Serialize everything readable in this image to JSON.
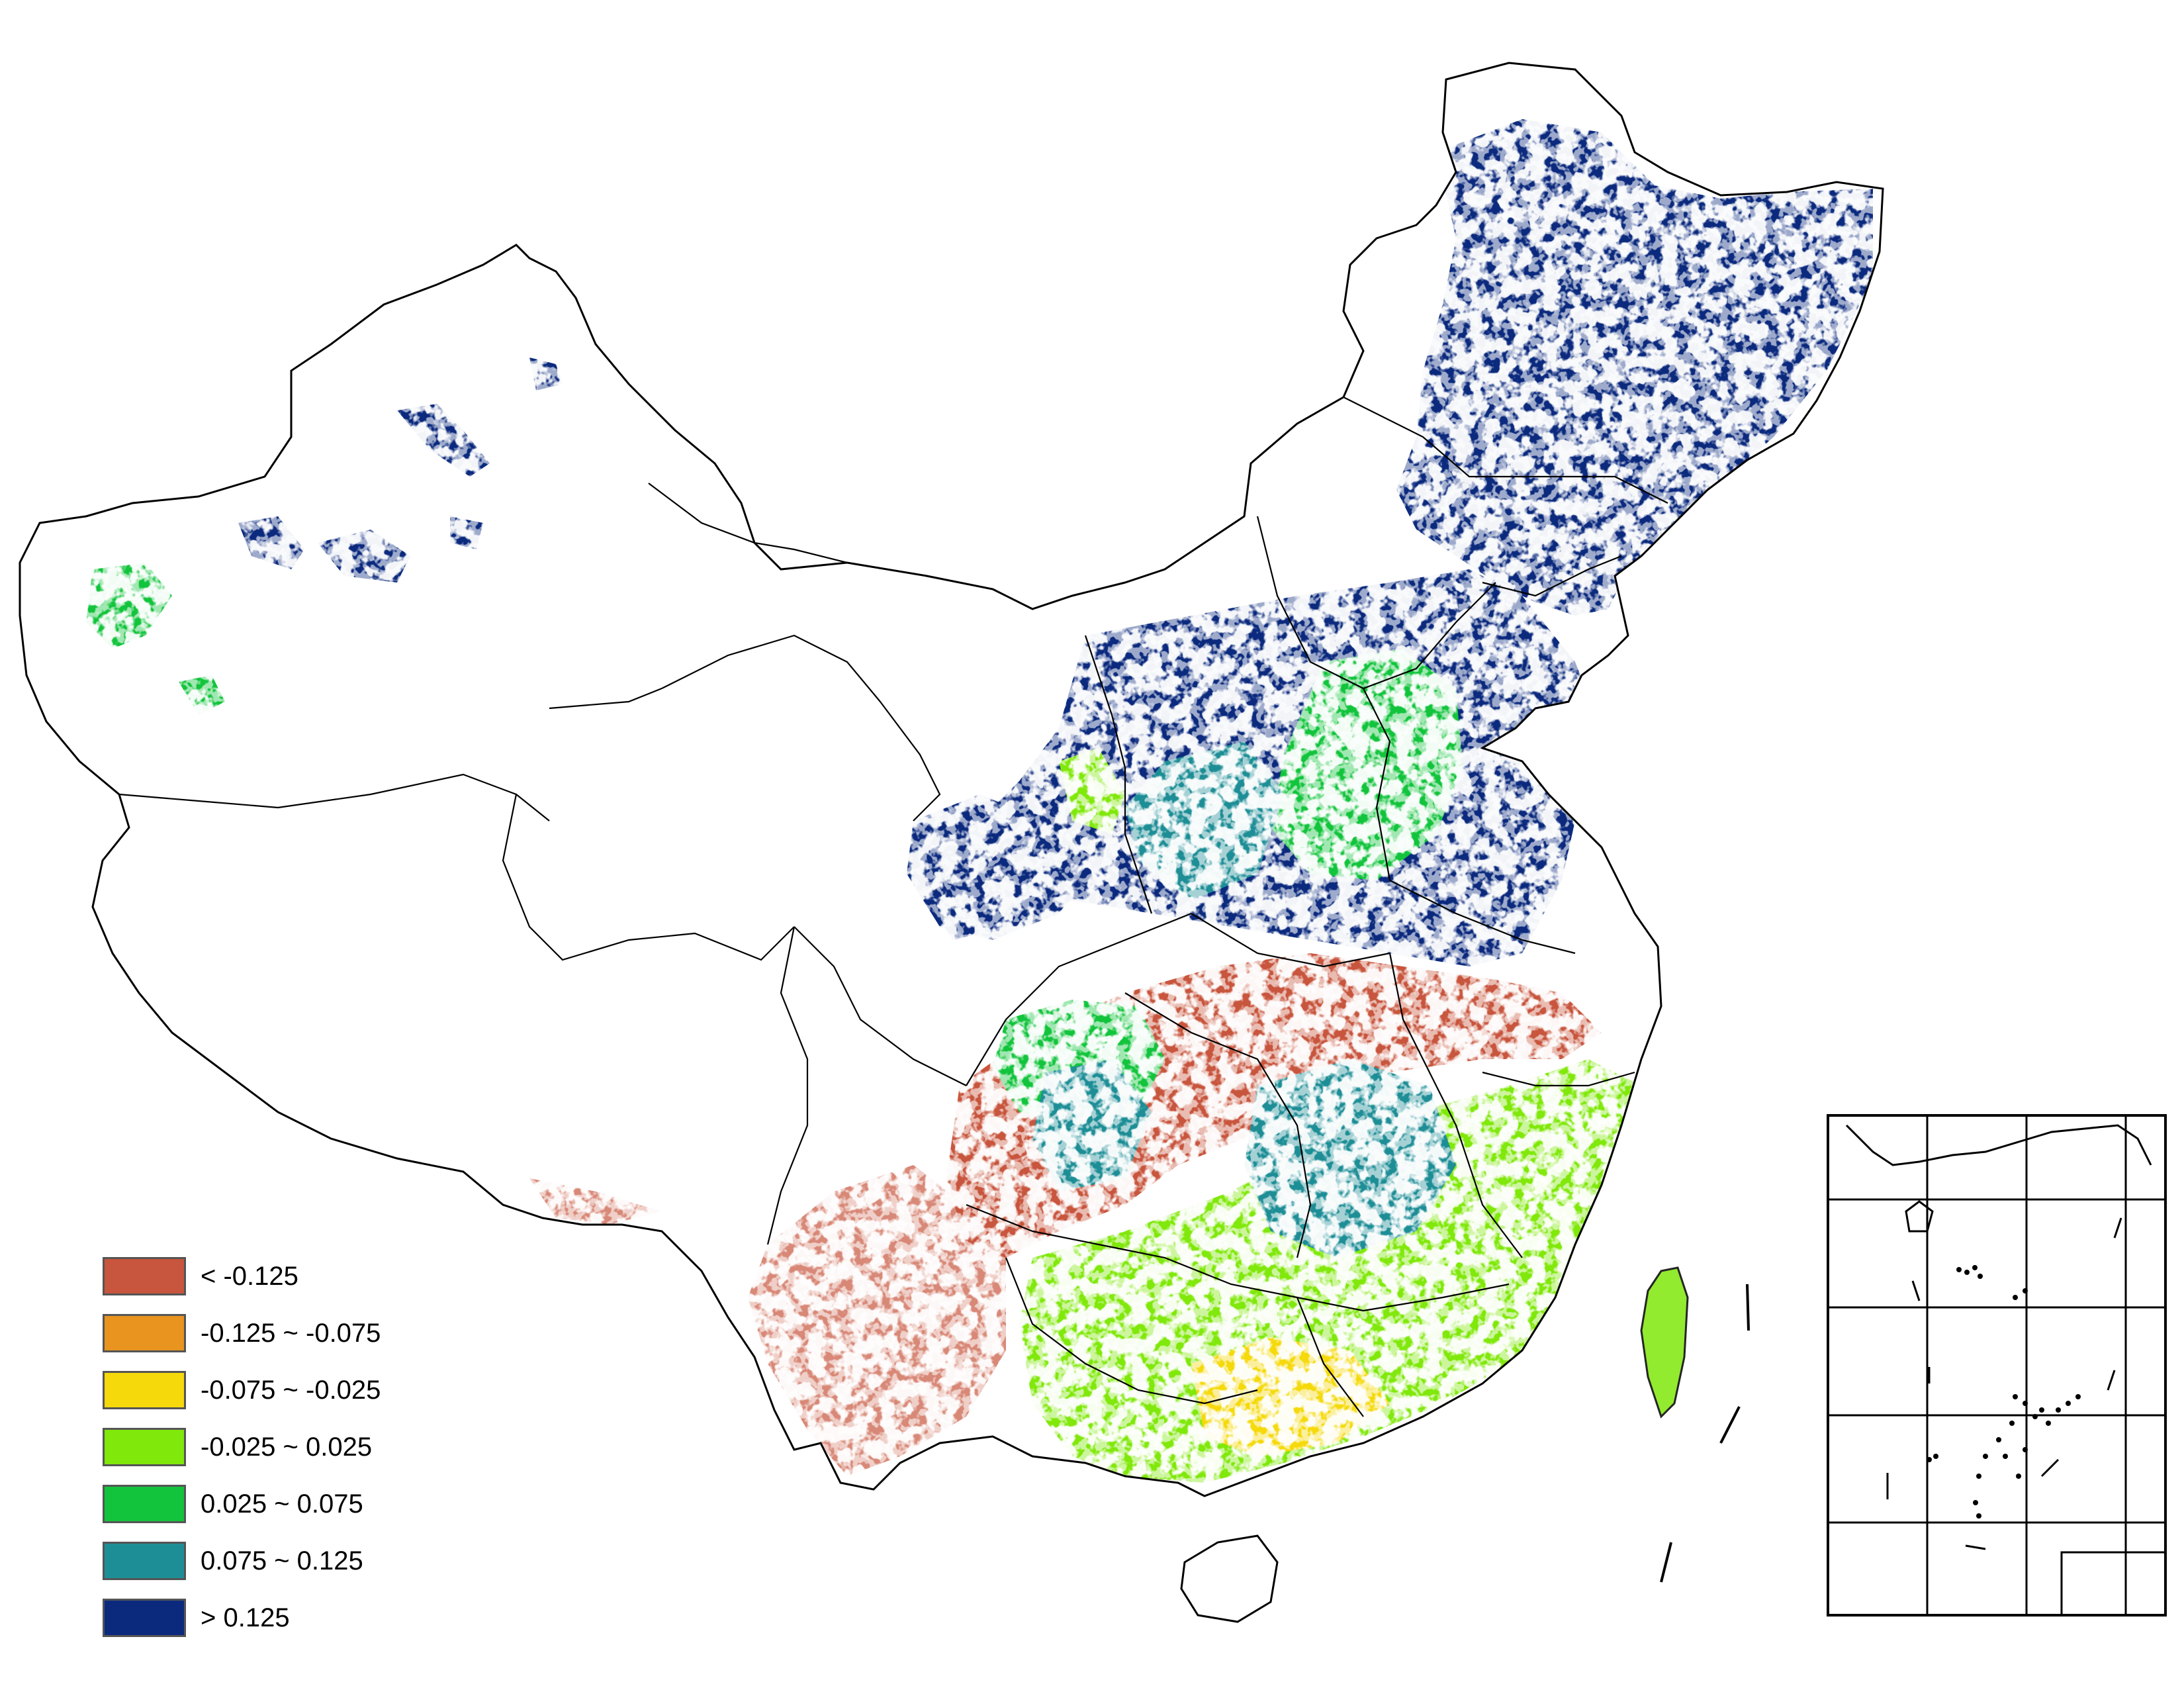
{
  "legend": {
    "items": [
      {
        "label": "< -0.125",
        "color": "#C8553D"
      },
      {
        "label": "-0.125 ~ -0.075",
        "color": "#E8941F"
      },
      {
        "label": "-0.075 ~ -0.025",
        "color": "#F5D90A"
      },
      {
        "label": "-0.025 ~ 0.025",
        "color": "#80E80A"
      },
      {
        "label": "0.025 ~ 0.075",
        "color": "#12C43C"
      },
      {
        "label": "0.075 ~ 0.125",
        "color": "#1E8E96"
      },
      {
        "label": "> 0.125",
        "color": "#0B2A7E"
      }
    ]
  },
  "colors": {
    "boundary": "#000000",
    "background": "#FFFFFF"
  }
}
